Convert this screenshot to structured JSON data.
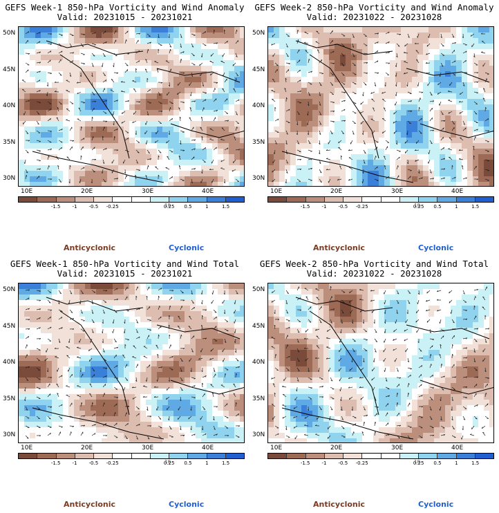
{
  "panels": [
    {
      "id": "p1",
      "title": "GEFS Week-1 850-hPa Vorticity and Wind Anomaly",
      "valid": "Valid: 20231015 - 20231021"
    },
    {
      "id": "p2",
      "title": "GEFS Week-2 850-hPa Vorticity and Wind Anomaly",
      "valid": "Valid: 20231022 - 20231028"
    },
    {
      "id": "p3",
      "title": "GEFS Week-1 850-hPa Vorticity and Wind Total",
      "valid": "Valid: 20231015 - 20231021"
    },
    {
      "id": "p4",
      "title": "GEFS Week-2 850-hPa Vorticity and Wind Total",
      "valid": "Valid: 20231022 - 20231028"
    }
  ],
  "axes": {
    "lat_labels": [
      "50N",
      "45N",
      "40N",
      "35N",
      "30N"
    ],
    "lon_labels": [
      "10E",
      "20E",
      "30E",
      "40E"
    ]
  },
  "colorbar": {
    "labels": [
      "-1.5",
      "-1",
      "-0.5",
      "-0.25",
      "0.25",
      "0.5",
      "1",
      "1.5"
    ],
    "scale_label": "10",
    "colors": [
      "#7a4a3a",
      "#9c6a55",
      "#bc8f7c",
      "#dcbdb0",
      "#f1e1d9",
      "#ffffff",
      "#ffffff",
      "#c9f1f6",
      "#8fd3ee",
      "#5fa9e4",
      "#3a80d8",
      "#1f5fd0"
    ]
  },
  "legend": {
    "anticyclonic": "Anticyclonic",
    "cyclonic": "Cyclonic"
  },
  "chart_data": [
    {
      "type": "heatmap",
      "title": "GEFS Week-1 850-hPa Vorticity and Wind Anomaly",
      "subtitle": "Valid: 20231015 - 20231021",
      "xlabel": "",
      "ylabel": "",
      "x_ticks": [
        "10E",
        "20E",
        "30E",
        "40E"
      ],
      "y_ticks": [
        "50N",
        "45N",
        "40N",
        "35N",
        "30N"
      ],
      "colorbar_levels": [
        -1.5,
        -1,
        -0.5,
        -0.25,
        0.25,
        0.5,
        1,
        1.5
      ],
      "colorbar_scale": "10",
      "legend": [
        "Anticyclonic",
        "Cyclonic"
      ]
    },
    {
      "type": "heatmap",
      "title": "GEFS Week-2 850-hPa Vorticity and Wind Anomaly",
      "subtitle": "Valid: 20231022 - 20231028",
      "xlabel": "",
      "ylabel": "",
      "x_ticks": [
        "10E",
        "20E",
        "30E",
        "40E"
      ],
      "y_ticks": [
        "50N",
        "45N",
        "40N",
        "35N",
        "30N"
      ],
      "colorbar_levels": [
        -1.5,
        -1,
        -0.5,
        -0.25,
        0.25,
        0.5,
        1,
        1.5
      ],
      "colorbar_scale": "10",
      "legend": [
        "Anticyclonic",
        "Cyclonic"
      ]
    },
    {
      "type": "heatmap",
      "title": "GEFS Week-1 850-hPa Vorticity and Wind Total",
      "subtitle": "Valid: 20231015 - 20231021",
      "xlabel": "",
      "ylabel": "",
      "x_ticks": [
        "10E",
        "20E",
        "30E",
        "40E"
      ],
      "y_ticks": [
        "50N",
        "45N",
        "40N",
        "35N",
        "30N"
      ],
      "colorbar_levels": [
        -1.5,
        -1,
        -0.5,
        -0.25,
        0.25,
        0.5,
        1,
        1.5
      ],
      "colorbar_scale": "10",
      "legend": [
        "Anticyclonic",
        "Cyclonic"
      ]
    },
    {
      "type": "heatmap",
      "title": "GEFS Week-2 850-hPa Vorticity and Wind Total",
      "subtitle": "Valid: 20231022 - 20231028",
      "xlabel": "",
      "ylabel": "",
      "x_ticks": [
        "10E",
        "20E",
        "30E",
        "40E"
      ],
      "y_ticks": [
        "50N",
        "45N",
        "40N",
        "35N",
        "30N"
      ],
      "colorbar_levels": [
        -1.5,
        -1,
        -0.5,
        -0.25,
        0.25,
        0.5,
        1,
        1.5
      ],
      "colorbar_scale": "10",
      "legend": [
        "Anticyclonic",
        "Cyclonic"
      ]
    }
  ]
}
